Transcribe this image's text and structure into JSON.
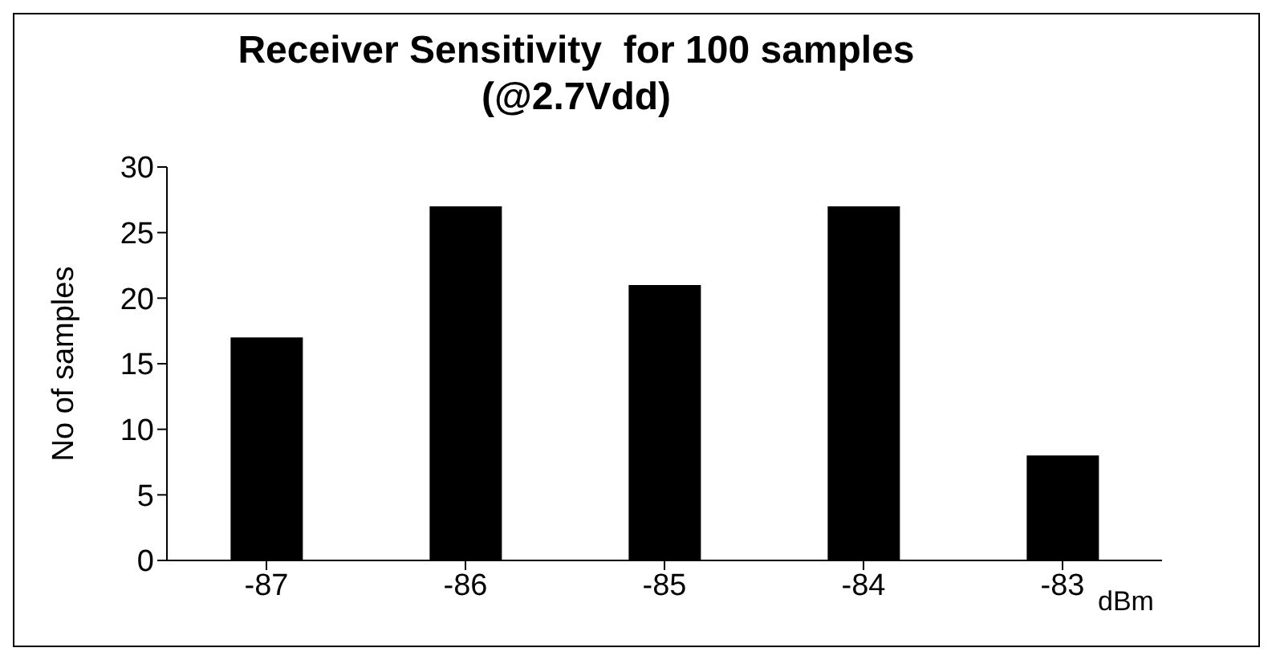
{
  "chart_data": {
    "type": "bar",
    "title": "Receiver Sensitivity  for 100 samples\n(@2.7Vdd)",
    "xlabel": "dBm",
    "ylabel": "No of samples",
    "categories": [
      "-87",
      "-86",
      "-85",
      "-84",
      "-83"
    ],
    "values": [
      17,
      27,
      21,
      27,
      8
    ],
    "color": "#000000",
    "ylim": [
      0,
      30
    ],
    "yticks": [
      0,
      5,
      10,
      15,
      20,
      25,
      30
    ],
    "legend": false
  }
}
